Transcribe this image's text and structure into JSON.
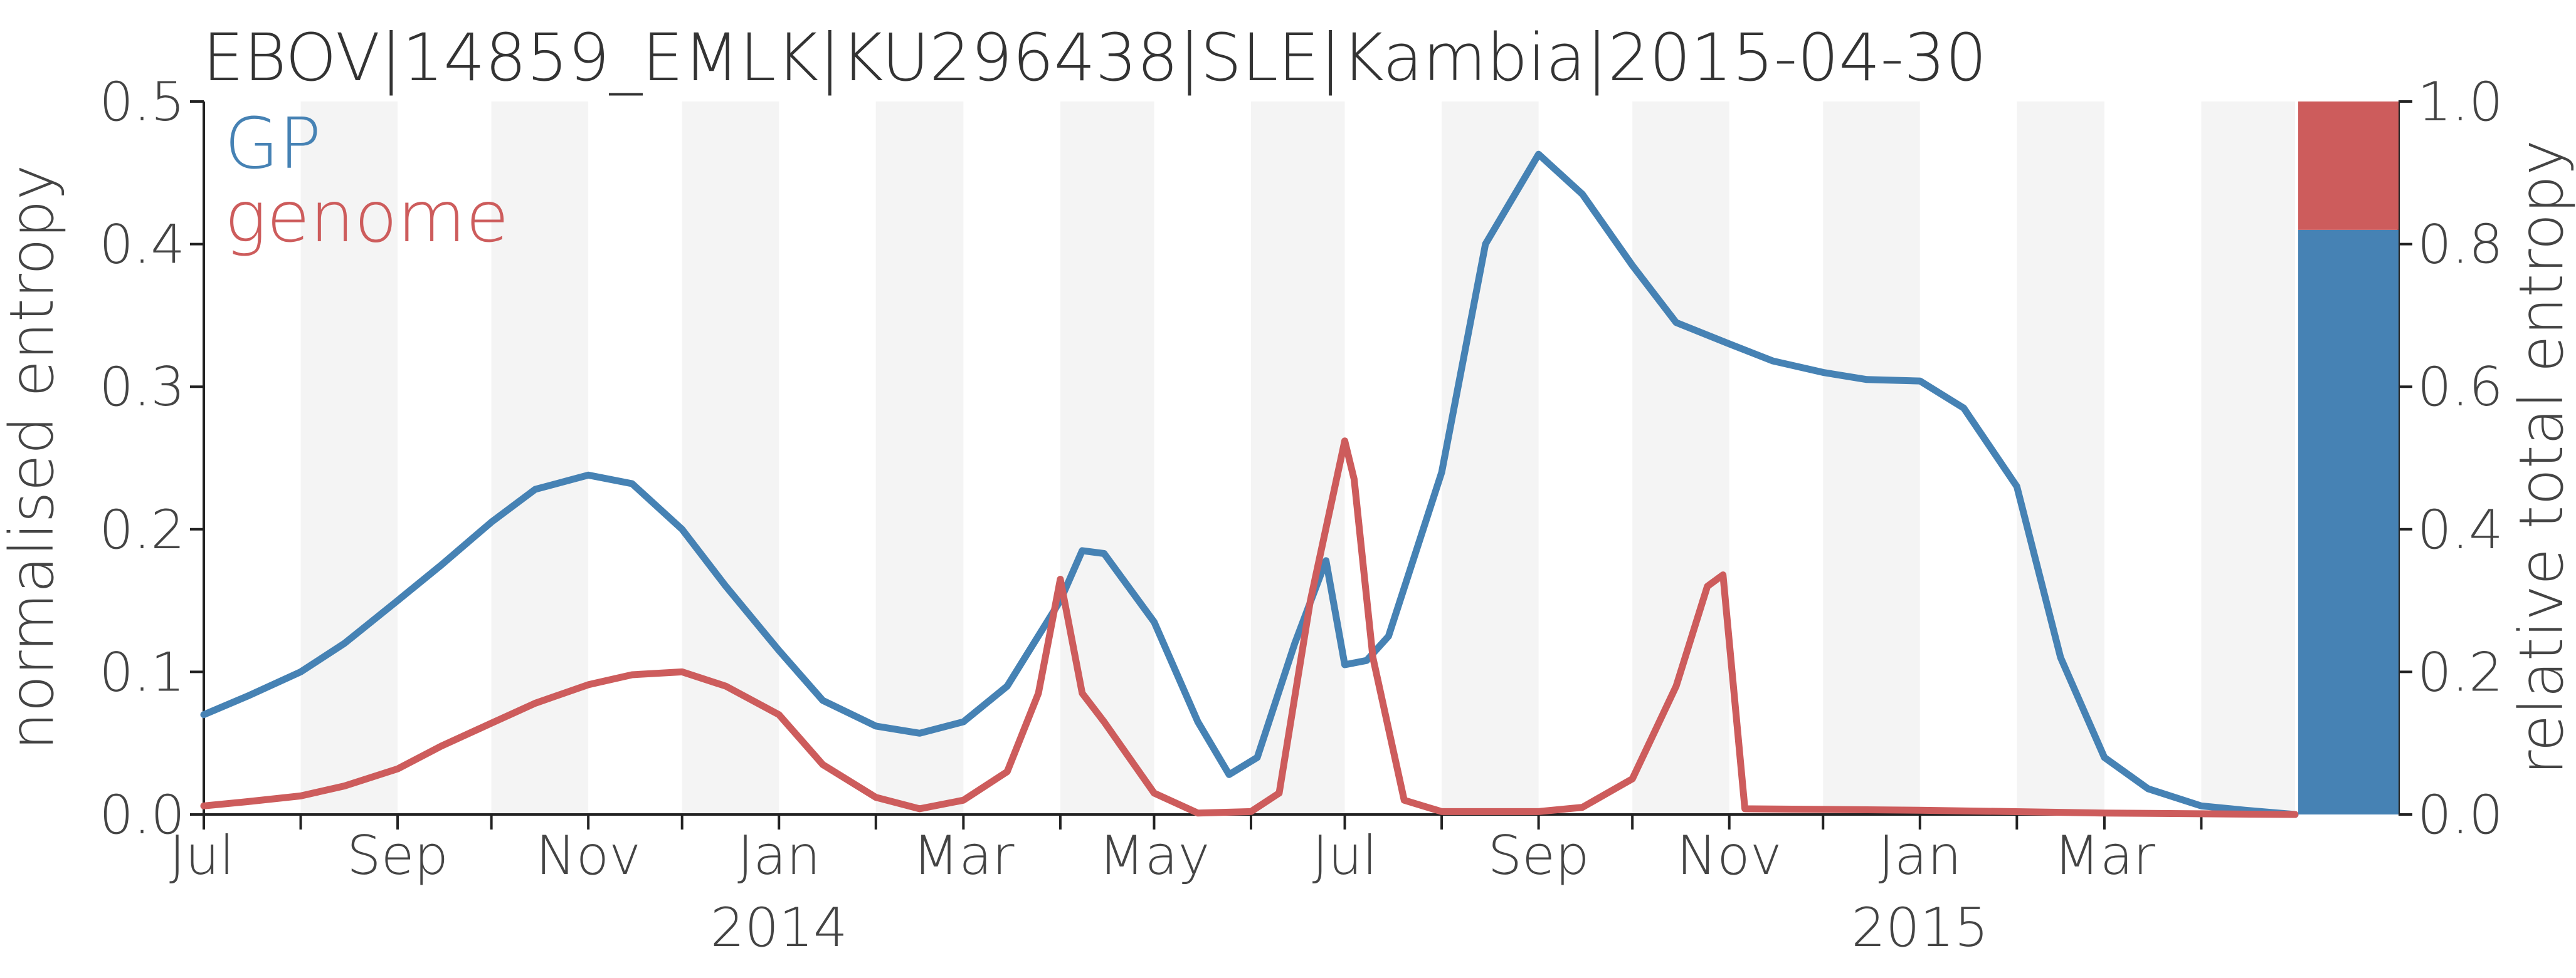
{
  "chart_data": {
    "type": "line",
    "title": "EBOV|14859_EMLK|KU296438|SLE|Kambia|2015-04-30",
    "ylabel": "normalised entropy",
    "ylabel_right": "relative total entropy",
    "ylim": [
      0,
      0.5
    ],
    "ylim_right": [
      0,
      1
    ],
    "yticks": [
      "0.0",
      "0.1",
      "0.2",
      "0.3",
      "0.4",
      "0.5"
    ],
    "yticks_right": [
      "0.0",
      "0.2",
      "0.4",
      "0.6",
      "0.8",
      "1.0"
    ],
    "xlim": [
      "2013-07-01",
      "2015-05-01"
    ],
    "month_ticks": [
      {
        "label": "Jul",
        "date": "2013-07-01"
      },
      {
        "label": "Sep",
        "date": "2013-09-01"
      },
      {
        "label": "Nov",
        "date": "2013-11-01"
      },
      {
        "label": "Jan",
        "date": "2014-01-01"
      },
      {
        "label": "Mar",
        "date": "2014-03-01"
      },
      {
        "label": "May",
        "date": "2014-05-01"
      },
      {
        "label": "Jul",
        "date": "2014-07-01"
      },
      {
        "label": "Sep",
        "date": "2014-09-01"
      },
      {
        "label": "Nov",
        "date": "2014-11-01"
      },
      {
        "label": "Jan",
        "date": "2015-01-01"
      },
      {
        "label": "Mar",
        "date": "2015-03-01"
      }
    ],
    "year_labels": [
      {
        "label": "2014",
        "date": "2014-01-01"
      },
      {
        "label": "2015",
        "date": "2015-01-01"
      }
    ],
    "shaded_bands": [
      [
        "2013-08-01",
        "2013-09-01"
      ],
      [
        "2013-10-01",
        "2013-11-01"
      ],
      [
        "2013-12-01",
        "2014-01-01"
      ],
      [
        "2014-02-01",
        "2014-03-01"
      ],
      [
        "2014-04-01",
        "2014-05-01"
      ],
      [
        "2014-06-01",
        "2014-07-01"
      ],
      [
        "2014-08-01",
        "2014-09-01"
      ],
      [
        "2014-10-01",
        "2014-11-01"
      ],
      [
        "2014-12-01",
        "2015-01-01"
      ],
      [
        "2015-02-01",
        "2015-03-01"
      ],
      [
        "2015-04-01",
        "2015-05-01"
      ]
    ],
    "grid": false,
    "legend": "top-left",
    "series": [
      {
        "name": "GP",
        "color": "#4682b4",
        "points": [
          [
            "2013-07-01",
            0.07
          ],
          [
            "2013-07-15",
            0.083
          ],
          [
            "2013-08-01",
            0.1
          ],
          [
            "2013-08-15",
            0.12
          ],
          [
            "2013-09-01",
            0.15
          ],
          [
            "2013-09-15",
            0.175
          ],
          [
            "2013-10-01",
            0.205
          ],
          [
            "2013-10-15",
            0.228
          ],
          [
            "2013-11-01",
            0.238
          ],
          [
            "2013-11-15",
            0.232
          ],
          [
            "2013-12-01",
            0.2
          ],
          [
            "2013-12-15",
            0.16
          ],
          [
            "2014-01-01",
            0.115
          ],
          [
            "2014-01-15",
            0.08
          ],
          [
            "2014-02-01",
            0.062
          ],
          [
            "2014-02-15",
            0.057
          ],
          [
            "2014-03-01",
            0.065
          ],
          [
            "2014-03-15",
            0.09
          ],
          [
            "2014-04-01",
            0.15
          ],
          [
            "2014-04-08",
            0.185
          ],
          [
            "2014-04-15",
            0.183
          ],
          [
            "2014-05-01",
            0.135
          ],
          [
            "2014-05-15",
            0.065
          ],
          [
            "2014-05-25",
            0.028
          ],
          [
            "2014-06-03",
            0.04
          ],
          [
            "2014-06-15",
            0.12
          ],
          [
            "2014-06-25",
            0.178
          ],
          [
            "2014-07-01",
            0.105
          ],
          [
            "2014-07-08",
            0.108
          ],
          [
            "2014-07-15",
            0.125
          ],
          [
            "2014-08-01",
            0.24
          ],
          [
            "2014-08-15",
            0.4
          ],
          [
            "2014-09-01",
            0.463
          ],
          [
            "2014-09-15",
            0.435
          ],
          [
            "2014-10-01",
            0.385
          ],
          [
            "2014-10-15",
            0.345
          ],
          [
            "2014-11-01",
            0.33
          ],
          [
            "2014-11-15",
            0.318
          ],
          [
            "2014-12-01",
            0.31
          ],
          [
            "2014-12-15",
            0.305
          ],
          [
            "2015-01-01",
            0.304
          ],
          [
            "2015-01-15",
            0.285
          ],
          [
            "2015-02-01",
            0.23
          ],
          [
            "2015-02-15",
            0.11
          ],
          [
            "2015-03-01",
            0.04
          ],
          [
            "2015-03-15",
            0.018
          ],
          [
            "2015-04-01",
            0.006
          ],
          [
            "2015-04-15",
            0.003
          ],
          [
            "2015-05-01",
            0.0
          ]
        ]
      },
      {
        "name": "genome",
        "color": "#cd5c5c",
        "points": [
          [
            "2013-07-01",
            0.006
          ],
          [
            "2013-07-15",
            0.009
          ],
          [
            "2013-08-01",
            0.013
          ],
          [
            "2013-08-15",
            0.02
          ],
          [
            "2013-09-01",
            0.032
          ],
          [
            "2013-09-15",
            0.048
          ],
          [
            "2013-10-01",
            0.064
          ],
          [
            "2013-10-15",
            0.078
          ],
          [
            "2013-11-01",
            0.091
          ],
          [
            "2013-11-15",
            0.098
          ],
          [
            "2013-12-01",
            0.1
          ],
          [
            "2013-12-15",
            0.09
          ],
          [
            "2014-01-01",
            0.07
          ],
          [
            "2014-01-15",
            0.035
          ],
          [
            "2014-02-01",
            0.012
          ],
          [
            "2014-02-15",
            0.004
          ],
          [
            "2014-03-01",
            0.01
          ],
          [
            "2014-03-15",
            0.03
          ],
          [
            "2014-03-25",
            0.085
          ],
          [
            "2014-04-01",
            0.165
          ],
          [
            "2014-04-08",
            0.085
          ],
          [
            "2014-04-15",
            0.065
          ],
          [
            "2014-05-01",
            0.015
          ],
          [
            "2014-05-15",
            0.001
          ],
          [
            "2014-06-01",
            0.002
          ],
          [
            "2014-06-10",
            0.015
          ],
          [
            "2014-06-20",
            0.15
          ],
          [
            "2014-07-01",
            0.262
          ],
          [
            "2014-07-04",
            0.235
          ],
          [
            "2014-07-10",
            0.11
          ],
          [
            "2014-07-20",
            0.01
          ],
          [
            "2014-08-01",
            0.002
          ],
          [
            "2014-09-01",
            0.002
          ],
          [
            "2014-09-15",
            0.005
          ],
          [
            "2014-10-01",
            0.025
          ],
          [
            "2014-10-15",
            0.09
          ],
          [
            "2014-10-25",
            0.16
          ],
          [
            "2014-10-30",
            0.168
          ],
          [
            "2014-11-06",
            0.004
          ],
          [
            "2015-01-01",
            0.003
          ],
          [
            "2015-03-01",
            0.001
          ],
          [
            "2015-05-01",
            0.0
          ]
        ]
      }
    ],
    "stacked_bar": {
      "segments": [
        {
          "name": "GP",
          "color": "#4682b4",
          "fraction": 0.82
        },
        {
          "name": "genome",
          "color": "#cd5c5c",
          "fraction": 0.18
        }
      ]
    }
  }
}
